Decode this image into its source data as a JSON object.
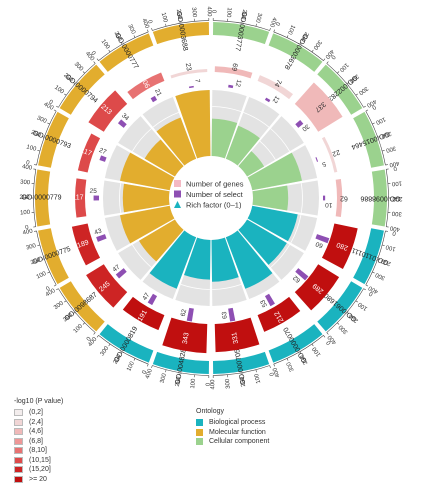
{
  "legends": {
    "pvalue": {
      "title": "-log10 (P value)",
      "items": [
        {
          "label": "(0,2]",
          "color": "#f3eded"
        },
        {
          "label": "(2,4]",
          "color": "#f1d6d6"
        },
        {
          "label": "(4,6]",
          "color": "#f0b9b9"
        },
        {
          "label": "(6,8]",
          "color": "#ee9797"
        },
        {
          "label": "(8,10]",
          "color": "#e77272"
        },
        {
          "label": "(10,15]",
          "color": "#dd4a4a"
        },
        {
          "label": "(15,20]",
          "color": "#cd2424"
        },
        {
          "label": ">= 20",
          "color": "#c00f0f"
        }
      ]
    },
    "ontology": {
      "title": "Ontology",
      "items": [
        {
          "label": "Biological process",
          "color": "#1ab3bf"
        },
        {
          "label": "Molecular function",
          "color": "#e2ad2e"
        },
        {
          "label": "Cellular component",
          "color": "#9bd28e"
        }
      ]
    },
    "center": [
      {
        "label": "Number of genes",
        "color": "#f4b9c4",
        "shape": "square"
      },
      {
        "label": "Number of select",
        "color": "#8e4fb3",
        "shape": "square"
      },
      {
        "label": "Rich factor (0–1)",
        "color": "#1ab3bf",
        "shape": "triangle"
      }
    ]
  },
  "chart_data": {
    "type": "circular-go-enrichment",
    "scale_ticks": [
      "0",
      "100",
      "200",
      "300",
      "400"
    ],
    "terms": [
      {
        "id": "GO:0003777",
        "ontology": "Cellular component",
        "genes": 69,
        "select": 12,
        "pvalue_bin": "(4,6]",
        "rich": 0.17
      },
      {
        "id": "GO:0003678",
        "ontology": "Cellular component",
        "genes": 74,
        "select": 12,
        "pvalue_bin": "(2,4]",
        "rich": 0.16
      },
      {
        "id": "GO:0022836",
        "ontology": "Cellular component",
        "genes": 337,
        "select": 30,
        "pvalue_bin": "(4,6]",
        "rich": 0.09
      },
      {
        "id": "GO:0015464",
        "ontology": "Cellular component",
        "genes": 22,
        "select": 5,
        "pvalue_bin": "(2,4]",
        "rich": 0.23
      },
      {
        "id": "GO:0098886",
        "ontology": "Cellular component",
        "genes": 62,
        "select": 10,
        "pvalue_bin": "(4,6]",
        "rich": 0.16
      },
      {
        "id": "GO:0110111",
        "ontology": "Biological process",
        "genes": 280,
        "select": 60,
        "pvalue_bin": ">= 20",
        "rich": 0.21
      },
      {
        "id": "GO:0061680",
        "ontology": "Biological process",
        "genes": 289,
        "select": 62,
        "pvalue_bin": ">= 20",
        "rich": 0.21
      },
      {
        "id": "GO:0000070",
        "ontology": "Biological process",
        "genes": 212,
        "select": 53,
        "pvalue_bin": ">= 20",
        "rich": 0.25
      },
      {
        "id": "GO:0007059",
        "ontology": "Biological process",
        "genes": 331,
        "select": 63,
        "pvalue_bin": ">= 20",
        "rich": 0.19
      },
      {
        "id": "GO:0048285",
        "ontology": "Biological process",
        "genes": 343,
        "select": 62,
        "pvalue_bin": ">= 20",
        "rich": 0.18
      },
      {
        "id": "GO:0000819",
        "ontology": "Biological process",
        "genes": 191,
        "select": 47,
        "pvalue_bin": ">= 20",
        "rich": 0.25
      },
      {
        "id": "GO:0098687",
        "ontology": "Molecular function",
        "genes": 245,
        "select": 47,
        "pvalue_bin": "(15,20]",
        "rich": 0.19
      },
      {
        "id": "GO:0000775",
        "ontology": "Molecular function",
        "genes": 189,
        "select": 43,
        "pvalue_bin": "(15,20]",
        "rich": 0.23
      },
      {
        "id": "GO:0000779",
        "ontology": "Molecular function",
        "genes": 117,
        "select": 25,
        "pvalue_bin": "(10,15]",
        "rich": 0.21
      },
      {
        "id": "GO:0000793",
        "ontology": "Molecular function",
        "genes": 117,
        "select": 27,
        "pvalue_bin": "(10,15]",
        "rich": 0.23
      },
      {
        "id": "GO:0000794",
        "ontology": "Molecular function",
        "genes": 213,
        "select": 34,
        "pvalue_bin": "(10,15]",
        "rich": 0.16
      },
      {
        "id": "GO:0000777",
        "ontology": "Molecular function",
        "genes": 106,
        "select": 21,
        "pvalue_bin": "(8,10]",
        "rich": 0.2
      },
      {
        "id": "GO:0003688",
        "ontology": "Molecular function",
        "genes": 23,
        "select": 7,
        "pvalue_bin": "(2,4]",
        "rich": 0.3
      }
    ]
  }
}
